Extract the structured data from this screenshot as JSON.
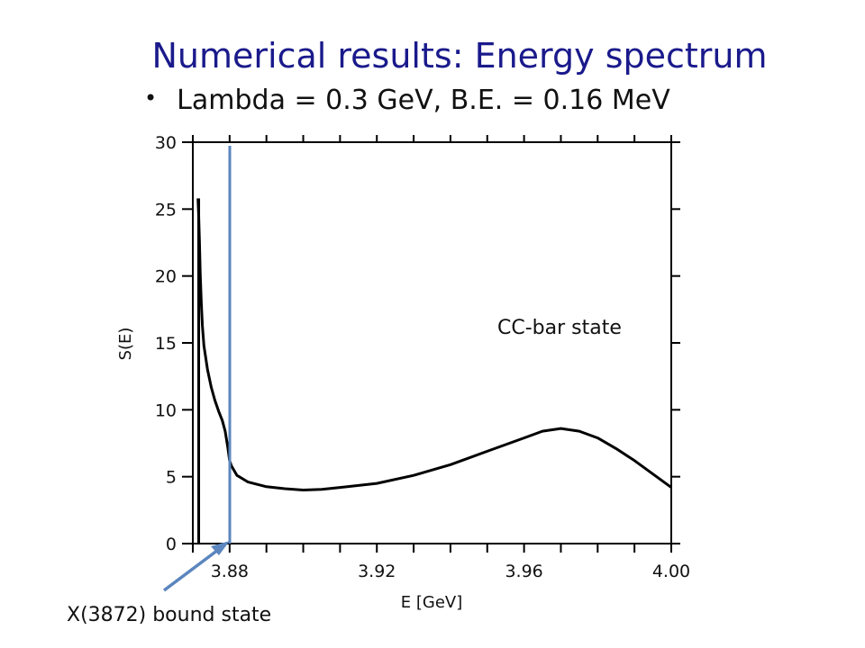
{
  "slide": {
    "title": "Numerical results: Energy spectrum",
    "bullet": "Lambda = 0.3 GeV, B.E. = 0.16 MeV"
  },
  "chart_data": {
    "type": "line",
    "xlabel": "E [GeV]",
    "ylabel": "S(E)",
    "xlim": [
      3.87,
      4.0
    ],
    "ylim": [
      0,
      30
    ],
    "x_ticks": [
      "3.88",
      "3.92",
      "3.96",
      "4.00"
    ],
    "y_ticks": [
      "0",
      "5",
      "10",
      "15",
      "20",
      "25",
      "30"
    ],
    "x_tick_values": [
      3.88,
      3.92,
      3.96,
      4.0
    ],
    "y_tick_values": [
      0,
      5,
      10,
      15,
      20,
      25,
      30
    ],
    "series": [
      {
        "x": [
          3.8714,
          3.8716,
          3.8718,
          3.872,
          3.8723,
          3.8726,
          3.873,
          3.874,
          3.875,
          3.876,
          3.877,
          3.878,
          3.8788,
          3.8795,
          3.88,
          3.8805,
          3.882,
          3.885,
          3.89,
          3.895,
          3.9,
          3.905,
          3.91,
          3.92,
          3.93,
          3.94,
          3.95,
          3.96,
          3.965,
          3.97,
          3.975,
          3.98,
          3.985,
          3.99,
          3.995,
          4.0
        ],
        "y": [
          25.8,
          24.5,
          22.5,
          20.2,
          18.0,
          16.3,
          14.8,
          13.0,
          11.7,
          10.7,
          9.9,
          9.2,
          8.4,
          7.2,
          6.2,
          5.8,
          5.1,
          4.6,
          4.25,
          4.1,
          4.0,
          4.05,
          4.2,
          4.5,
          5.1,
          5.9,
          6.9,
          7.9,
          8.4,
          8.6,
          8.4,
          7.9,
          7.1,
          6.2,
          5.2,
          4.2
        ]
      }
    ],
    "bound_state": {
      "x": 3.8716,
      "y": 25.8
    },
    "annotations": {
      "cc_bar_label": "CC-bar state",
      "bound_state_label": "X(3872) bound state"
    },
    "colors": {
      "curve": "#000000",
      "marker_line": "#5b86bf",
      "arrow": "#5b86bf"
    }
  }
}
